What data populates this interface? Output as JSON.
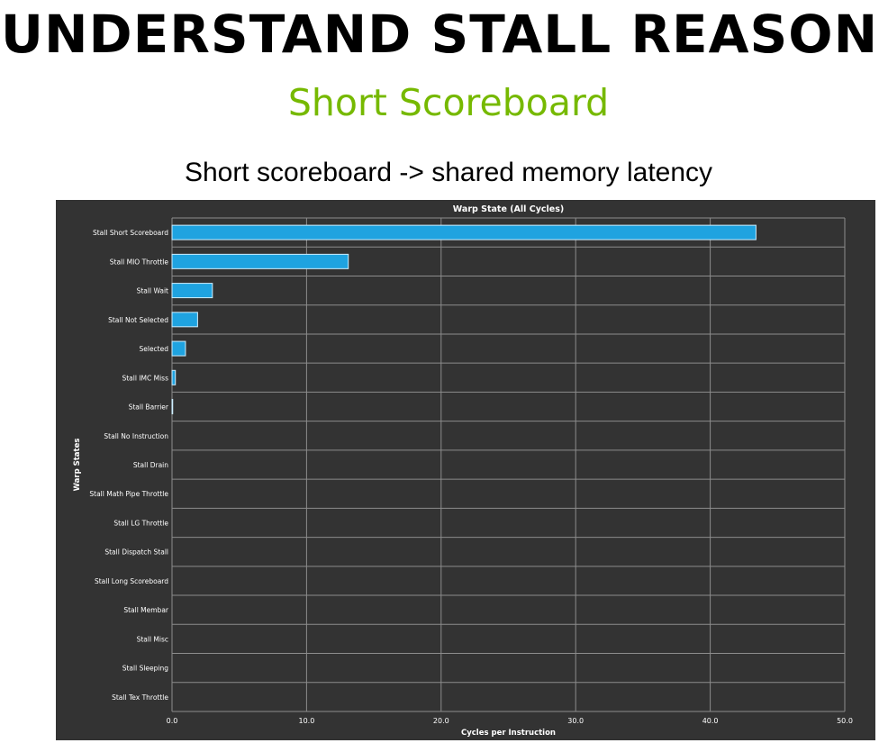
{
  "slide": {
    "title": "UNDERSTAND STALL REASON",
    "subtitle": "Short Scoreboard",
    "caption": "Short scoreboard -> shared memory latency"
  },
  "chart_data": {
    "type": "bar",
    "orientation": "horizontal",
    "title": "Warp State (All Cycles)",
    "xlabel": "Cycles per Instruction",
    "ylabel": "Warp States",
    "xlim": [
      0,
      50
    ],
    "xticks": [
      "0.0",
      "10.0",
      "20.0",
      "30.0",
      "40.0",
      "50.0"
    ],
    "grid": true,
    "categories": [
      "Stall Short Scoreboard",
      "Stall MIO Throttle",
      "Stall Wait",
      "Stall Not Selected",
      "Selected",
      "Stall IMC Miss",
      "Stall Barrier",
      "Stall No Instruction",
      "Stall Drain",
      "Stall Math Pipe Throttle",
      "Stall LG Throttle",
      "Stall Dispatch Stall",
      "Stall Long Scoreboard",
      "Stall Membar",
      "Stall Misc",
      "Stall Sleeping",
      "Stall Tex Throttle"
    ],
    "values": [
      43.4,
      13.1,
      3.0,
      1.9,
      1.0,
      0.25,
      0.05,
      0.02,
      0.02,
      0.02,
      0.01,
      0.01,
      0.01,
      0,
      0,
      0,
      0
    ],
    "colors": {
      "background": "#333333",
      "bar": "#1fa3e0",
      "bar_edge": "#cfefff",
      "grid": "#8c8c8c",
      "text": "#ffffff"
    }
  }
}
